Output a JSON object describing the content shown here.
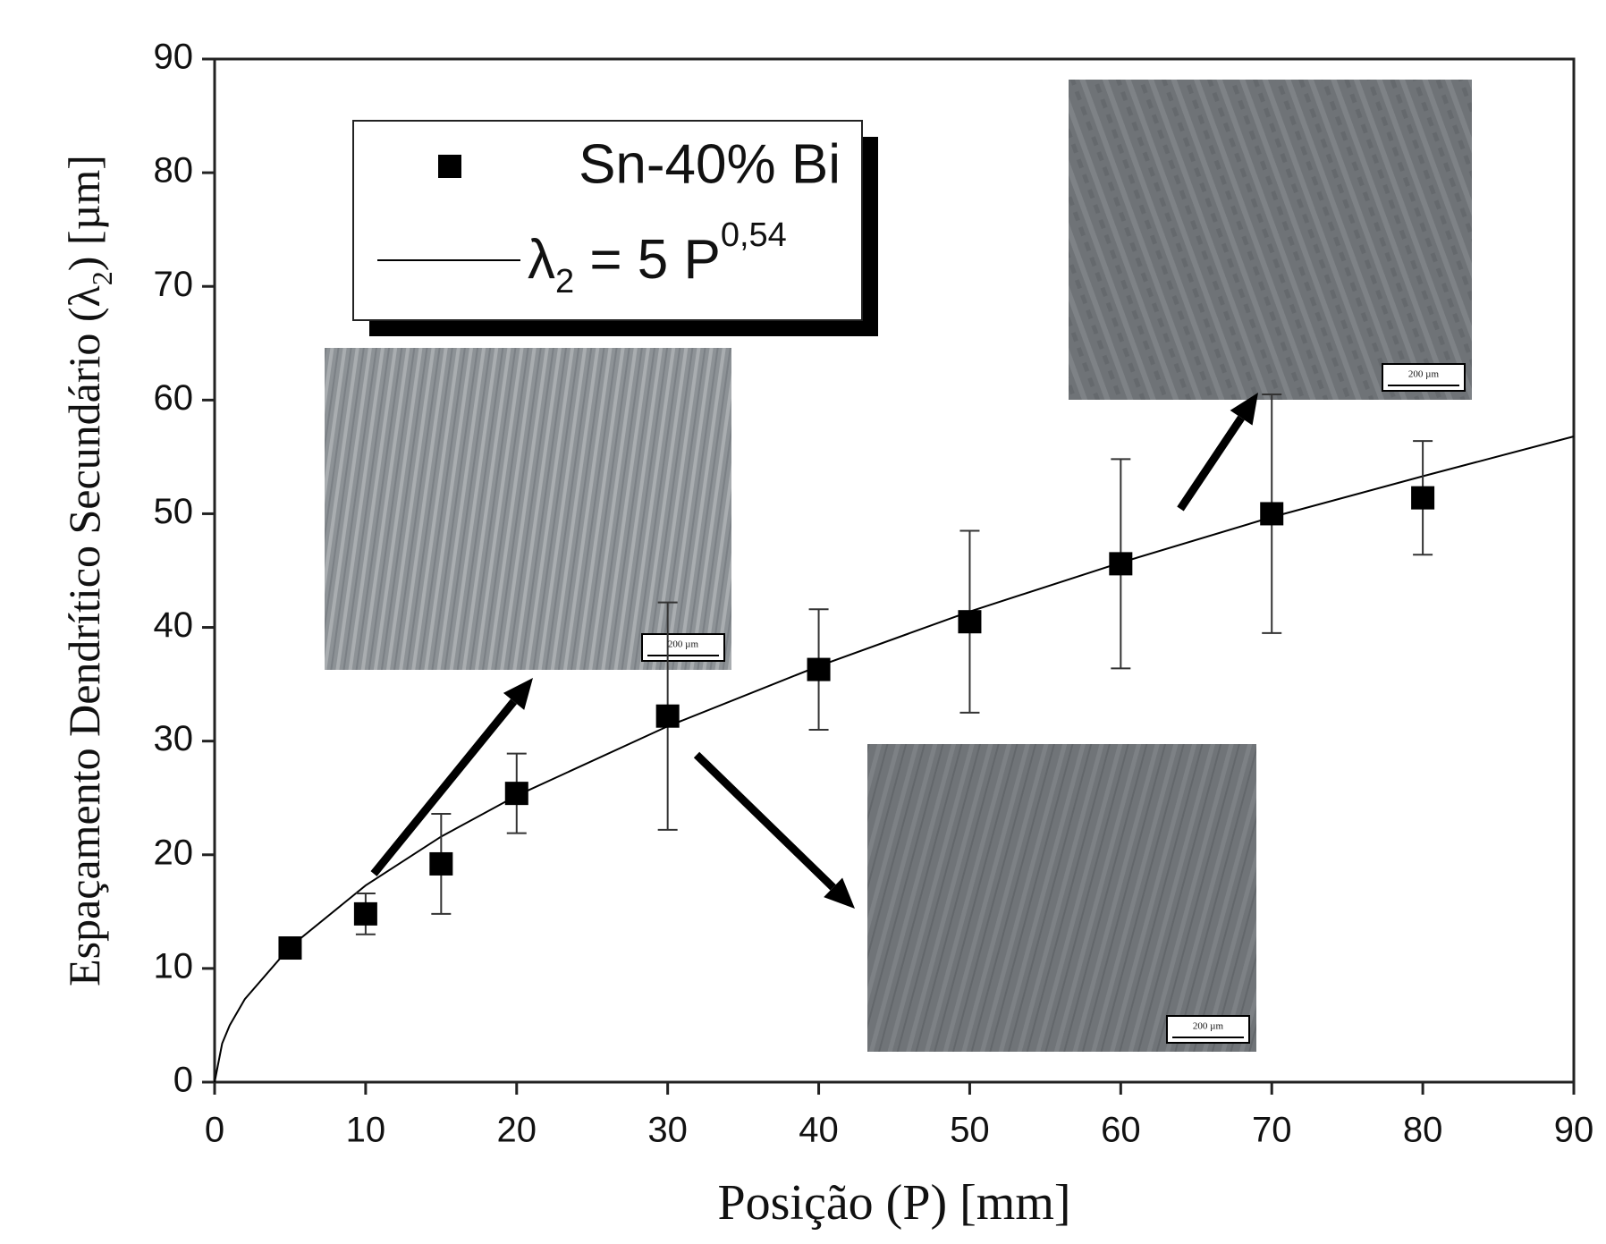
{
  "chart_data": {
    "type": "scatter",
    "x_label": "Posição (P) [mm]",
    "y_label_parts": [
      "Espaçamento Dendrítico Secundário (λ",
      "2",
      ") [µm]"
    ],
    "xlim": [
      0,
      90
    ],
    "ylim": [
      0,
      90
    ],
    "xticks": [
      0,
      10,
      20,
      30,
      40,
      50,
      60,
      70,
      80,
      90
    ],
    "yticks": [
      0,
      10,
      20,
      30,
      40,
      50,
      60,
      70,
      80,
      90
    ],
    "series": [
      {
        "name": "Sn-40% Bi",
        "color": "#000000",
        "x": [
          5,
          10,
          15,
          20,
          30,
          40,
          50,
          60,
          70,
          80
        ],
        "values": [
          11.8,
          14.8,
          19.2,
          25.4,
          32.2,
          36.3,
          40.5,
          45.6,
          50.0,
          51.4
        ],
        "yerr": [
          0.5,
          1.8,
          4.4,
          3.5,
          10.0,
          5.3,
          8.0,
          9.2,
          10.5,
          5.0
        ]
      },
      {
        "name_parts": [
          "λ",
          "2",
          " = 5 P",
          "0,54"
        ],
        "color": "#000000",
        "x": [
          0,
          0.5,
          1,
          2,
          5,
          10,
          15,
          20,
          30,
          40,
          50,
          60,
          70,
          80,
          90
        ],
        "values": [
          0,
          3.4,
          5.0,
          7.3,
          11.9,
          17.3,
          21.6,
          25.2,
          31.3,
          36.6,
          41.4,
          45.7,
          49.7,
          53.3,
          56.8
        ]
      }
    ],
    "inset_scale_labels": [
      "200 µm",
      "200 µm",
      "200 µm"
    ]
  }
}
